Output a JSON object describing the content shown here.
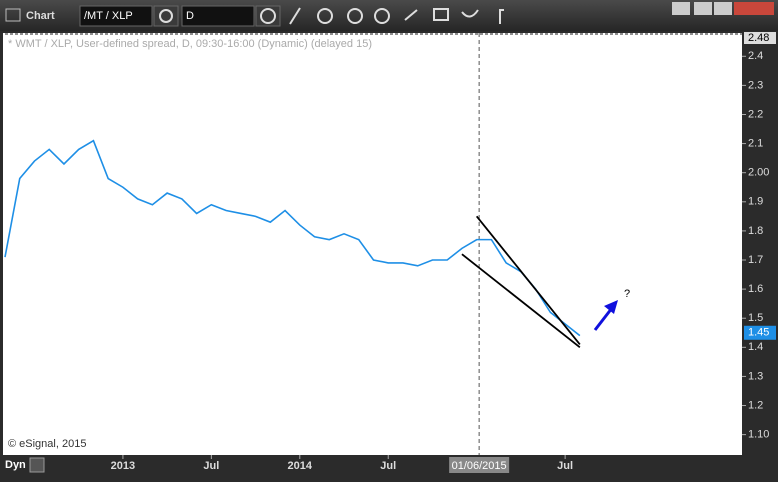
{
  "window": {
    "title": "Chart",
    "symbol": "/MT / XLP",
    "interval": "D",
    "mode": "Dyn"
  },
  "chart_data": {
    "type": "line",
    "legend_text": "* WMT / XLP, User-defined spread, D, 09:30-16:00 (Dynamic) (delayed 15)",
    "copyright": "© eSignal, 2015",
    "series": [
      {
        "name": "WMT / XLP",
        "color": "#1e8fe6",
        "x": [
          "2012-05",
          "2012-06",
          "2012-07",
          "2012-08",
          "2012-09",
          "2012-10",
          "2012-11",
          "2012-12",
          "2013-01",
          "2013-02",
          "2013-03",
          "2013-04",
          "2013-05",
          "2013-06",
          "2013-07",
          "2013-08",
          "2013-09",
          "2013-10",
          "2013-11",
          "2013-12",
          "2014-01",
          "2014-02",
          "2014-03",
          "2014-04",
          "2014-05",
          "2014-06",
          "2014-07",
          "2014-08",
          "2014-09",
          "2014-10",
          "2014-11",
          "2014-12",
          "2015-01",
          "2015-02",
          "2015-03",
          "2015-04",
          "2015-05",
          "2015-06",
          "2015-07",
          "2015-08"
        ],
        "values": [
          1.71,
          1.98,
          2.04,
          2.08,
          2.03,
          2.08,
          2.11,
          1.98,
          1.95,
          1.91,
          1.89,
          1.93,
          1.91,
          1.86,
          1.89,
          1.87,
          1.86,
          1.85,
          1.83,
          1.87,
          1.82,
          1.78,
          1.77,
          1.79,
          1.77,
          1.7,
          1.69,
          1.69,
          1.68,
          1.7,
          1.7,
          1.74,
          1.77,
          1.77,
          1.69,
          1.66,
          1.6,
          1.52,
          1.48,
          1.44
        ]
      }
    ],
    "trendlines": [
      {
        "x": [
          "2015-01",
          "2015-08"
        ],
        "values": [
          1.85,
          1.41
        ],
        "color": "#000000"
      },
      {
        "x": [
          "2014-12",
          "2015-08"
        ],
        "values": [
          1.72,
          1.4
        ],
        "color": "#000000"
      }
    ],
    "cursor": {
      "x": "2015-01-06",
      "label": "01/06/2015"
    },
    "annotation": "?",
    "last_value_label": 1.45,
    "xlim": [
      "2012-05",
      "2016-07"
    ],
    "xticks": [
      {
        "value": "2013-01",
        "label": "2013"
      },
      {
        "value": "2013-07",
        "label": "Jul"
      },
      {
        "value": "2014-01",
        "label": "2014"
      },
      {
        "value": "2014-07",
        "label": "Jul"
      },
      {
        "value": "2015-07",
        "label": "Jul"
      }
    ],
    "ylim": [
      1.03,
      2.48
    ],
    "yticks": [
      {
        "value": 1.1,
        "label": "1.10"
      },
      1.2,
      1.3,
      1.4,
      1.5,
      1.6,
      1.7,
      1.8,
      1.9,
      {
        "value": 2.0,
        "label": "2.00"
      },
      2.1,
      2.2,
      2.3,
      2.4
    ]
  }
}
